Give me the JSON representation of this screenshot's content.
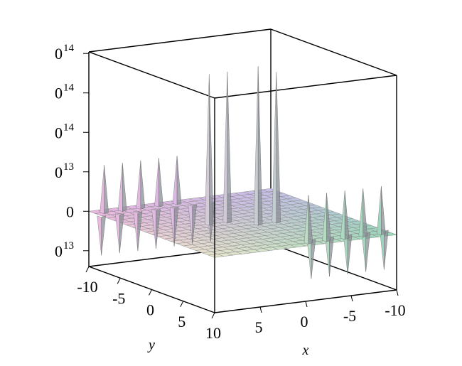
{
  "chart_data": {
    "type": "surface3d",
    "xlabel": "x",
    "ylabel": "y",
    "xlim": [
      -10,
      10
    ],
    "ylim": [
      -10,
      10
    ],
    "zlim": [
      -70000000000000,
      202000000000000
    ],
    "xticks": [
      -10,
      -5,
      0,
      5
    ],
    "yticks": [
      -10,
      -5,
      0,
      5,
      10
    ],
    "zticks": [
      {
        "value": -50000000000000,
        "label": "0",
        "power": "13"
      },
      0,
      {
        "value": 50000000000000,
        "label": "0",
        "power": "13"
      },
      {
        "value": 100000000000000,
        "label": "0",
        "power": "14"
      },
      {
        "value": 150000000000000,
        "label": "0",
        "power": "14"
      },
      {
        "value": 200000000000000,
        "label": "0",
        "power": "14"
      }
    ],
    "plane_z": 0,
    "spikes": [
      {
        "x": 9,
        "y": -9,
        "z": 60000000000000
      },
      {
        "x": 7,
        "y": -9,
        "z": 60000000000000
      },
      {
        "x": 5,
        "y": -9,
        "z": 60000000000000
      },
      {
        "x": 3,
        "y": -9,
        "z": 60000000000000
      },
      {
        "x": 1,
        "y": -9,
        "z": 60000000000000
      },
      {
        "x": -1,
        "y": 9,
        "z": 60000000000000
      },
      {
        "x": -3,
        "y": 9,
        "z": 60000000000000
      },
      {
        "x": -5,
        "y": 9,
        "z": 60000000000000
      },
      {
        "x": -7,
        "y": 9,
        "z": 60000000000000
      },
      {
        "x": -9,
        "y": 9,
        "z": 60000000000000
      },
      {
        "x": 10,
        "y": -8,
        "z": -50000000000000
      },
      {
        "x": 8,
        "y": -8,
        "z": -50000000000000
      },
      {
        "x": 6,
        "y": -8,
        "z": -50000000000000
      },
      {
        "x": 4,
        "y": -8,
        "z": -50000000000000
      },
      {
        "x": 2,
        "y": -8,
        "z": -50000000000000
      },
      {
        "x": 0,
        "y": -8,
        "z": -50000000000000
      },
      {
        "x": -2,
        "y": -8,
        "z": -50000000000000
      },
      {
        "x": -2,
        "y": 8,
        "z": -50000000000000
      },
      {
        "x": -4,
        "y": 8,
        "z": -50000000000000
      },
      {
        "x": -6,
        "y": 8,
        "z": -50000000000000
      },
      {
        "x": -8,
        "y": 8,
        "z": -50000000000000
      },
      {
        "x": -10,
        "y": 8,
        "z": -50000000000000
      },
      {
        "x": 3,
        "y": -1,
        "z": 190000000000000
      },
      {
        "x": 1,
        "y": -1,
        "z": 190000000000000
      },
      {
        "x": -1,
        "y": 1,
        "z": 200000000000000
      },
      {
        "x": -3,
        "y": 1,
        "z": 190000000000000
      }
    ]
  }
}
